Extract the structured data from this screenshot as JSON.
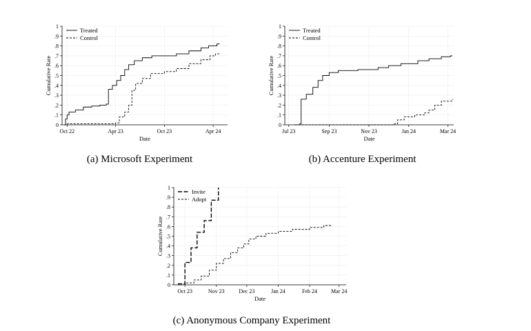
{
  "captions": {
    "a": "(a) Microsoft Experiment",
    "b": "(b) Accenture Experiment",
    "c": "(c) Anonymous Company Experiment"
  },
  "chart_data": [
    {
      "type": "line",
      "xlabel": "Date",
      "ylabel": "Cumulative Rate",
      "x_type": "date",
      "xlim": [
        "2022-09-12",
        "2024-05-25"
      ],
      "ylim": [
        0,
        1
      ],
      "yticks": [
        0,
        0.1,
        0.2,
        0.3,
        0.4,
        0.5,
        0.6,
        0.7,
        0.8,
        0.9,
        1
      ],
      "ytick_labels": [
        "0",
        ".1",
        ".2",
        ".3",
        ".4",
        ".5",
        ".6",
        ".7",
        ".8",
        ".9",
        "1"
      ],
      "xticks": [
        "2022-10-01",
        "2023-04-01",
        "2023-10-01",
        "2024-04-01"
      ],
      "xtick_labels": [
        "Oct 22",
        "Apr 23",
        "Oct 23",
        "Apr 24"
      ],
      "grid": true,
      "legend": "top-left",
      "series": [
        {
          "name": "Treated",
          "style": "solid",
          "step": true,
          "points": [
            [
              "2022-09-20",
              0.0
            ],
            [
              "2022-09-25",
              0.06
            ],
            [
              "2022-10-01",
              0.1
            ],
            [
              "2022-10-08",
              0.13
            ],
            [
              "2022-11-01",
              0.15
            ],
            [
              "2022-12-01",
              0.18
            ],
            [
              "2023-01-01",
              0.19
            ],
            [
              "2023-02-01",
              0.2
            ],
            [
              "2023-02-25",
              0.21
            ],
            [
              "2023-03-05",
              0.36
            ],
            [
              "2023-03-20",
              0.4
            ],
            [
              "2023-04-05",
              0.45
            ],
            [
              "2023-04-20",
              0.5
            ],
            [
              "2023-05-05",
              0.56
            ],
            [
              "2023-05-20",
              0.61
            ],
            [
              "2023-06-10",
              0.65
            ],
            [
              "2023-07-10",
              0.68
            ],
            [
              "2023-08-15",
              0.7
            ],
            [
              "2023-10-01",
              0.7
            ],
            [
              "2023-11-15",
              0.72
            ],
            [
              "2024-01-01",
              0.75
            ],
            [
              "2024-02-15",
              0.78
            ],
            [
              "2024-03-15",
              0.8
            ],
            [
              "2024-04-15",
              0.82
            ],
            [
              "2024-04-25",
              0.82
            ]
          ]
        },
        {
          "name": "Control",
          "style": "dashed",
          "step": true,
          "points": [
            [
              "2022-09-20",
              0.0
            ],
            [
              "2022-10-01",
              0.01
            ],
            [
              "2023-01-01",
              0.01
            ],
            [
              "2023-04-01",
              0.02
            ],
            [
              "2023-04-15",
              0.08
            ],
            [
              "2023-05-05",
              0.13
            ],
            [
              "2023-05-20",
              0.2
            ],
            [
              "2023-06-01",
              0.35
            ],
            [
              "2023-06-15",
              0.42
            ],
            [
              "2023-07-10",
              0.47
            ],
            [
              "2023-08-10",
              0.52
            ],
            [
              "2023-10-01",
              0.54
            ],
            [
              "2023-11-15",
              0.57
            ],
            [
              "2024-01-01",
              0.62
            ],
            [
              "2024-02-15",
              0.66
            ],
            [
              "2024-03-20",
              0.7
            ],
            [
              "2024-04-10",
              0.72
            ],
            [
              "2024-04-25",
              0.72
            ]
          ]
        }
      ]
    },
    {
      "type": "line",
      "xlabel": "Date",
      "ylabel": "Cumulative Rate",
      "x_type": "date",
      "xlim": [
        "2023-06-25",
        "2024-03-10"
      ],
      "ylim": [
        0,
        1
      ],
      "yticks": [
        0,
        0.1,
        0.2,
        0.3,
        0.4,
        0.5,
        0.6,
        0.7,
        0.8,
        0.9,
        1
      ],
      "ytick_labels": [
        "0",
        ".1",
        ".2",
        ".3",
        ".4",
        ".5",
        ".6",
        ".7",
        ".8",
        ".9",
        "1"
      ],
      "xticks": [
        "2023-07-01",
        "2023-09-01",
        "2023-11-01",
        "2024-01-01",
        "2024-03-01"
      ],
      "xtick_labels": [
        "Jul 23",
        "Sep 23",
        "Nov 23",
        "Jan 24",
        "Mar 24"
      ],
      "grid": true,
      "legend": "top-left",
      "series": [
        {
          "name": "Treated",
          "style": "solid",
          "step": true,
          "points": [
            [
              "2023-07-10",
              0.0
            ],
            [
              "2023-07-18",
              0.01
            ],
            [
              "2023-07-20",
              0.26
            ],
            [
              "2023-07-28",
              0.31
            ],
            [
              "2023-08-07",
              0.38
            ],
            [
              "2023-08-15",
              0.45
            ],
            [
              "2023-08-22",
              0.5
            ],
            [
              "2023-09-01",
              0.53
            ],
            [
              "2023-09-15",
              0.55
            ],
            [
              "2023-10-15",
              0.56
            ],
            [
              "2023-11-15",
              0.58
            ],
            [
              "2023-12-01",
              0.6
            ],
            [
              "2023-12-20",
              0.62
            ],
            [
              "2024-01-15",
              0.65
            ],
            [
              "2024-02-01",
              0.67
            ],
            [
              "2024-02-20",
              0.69
            ],
            [
              "2024-03-05",
              0.7
            ],
            [
              "2024-03-08",
              0.7
            ]
          ]
        },
        {
          "name": "Control",
          "style": "dashed",
          "step": true,
          "points": [
            [
              "2023-07-10",
              0.0
            ],
            [
              "2023-12-10",
              0.01
            ],
            [
              "2023-12-15",
              0.05
            ],
            [
              "2023-12-25",
              0.08
            ],
            [
              "2024-01-10",
              0.1
            ],
            [
              "2024-01-25",
              0.12
            ],
            [
              "2024-02-01",
              0.15
            ],
            [
              "2024-02-10",
              0.2
            ],
            [
              "2024-02-20",
              0.24
            ],
            [
              "2024-03-08",
              0.26
            ]
          ]
        }
      ]
    },
    {
      "type": "line",
      "xlabel": "Date",
      "ylabel": "Cumulative Rate",
      "x_type": "date",
      "xlim": [
        "2023-09-20",
        "2024-03-08"
      ],
      "ylim": [
        0,
        1
      ],
      "yticks": [
        0,
        0.1,
        0.2,
        0.3,
        0.4,
        0.5,
        0.6,
        0.7,
        0.8,
        0.9,
        1
      ],
      "ytick_labels": [
        "0",
        ".1",
        ".2",
        ".3",
        ".4",
        ".5",
        ".6",
        ".7",
        ".8",
        ".9",
        "1"
      ],
      "xticks": [
        "2023-10-01",
        "2023-11-01",
        "2023-12-01",
        "2024-01-01",
        "2024-02-01",
        "2024-03-01"
      ],
      "xtick_labels": [
        "Oct 23",
        "Nov 23",
        "Dec 23",
        "Jan 24",
        "Feb 24",
        "Mar 24"
      ],
      "grid": true,
      "legend": "top-left",
      "series": [
        {
          "name": "Invite",
          "style": "longdash",
          "step": true,
          "points": [
            [
              "2023-09-24",
              0.01
            ],
            [
              "2023-10-01",
              0.23
            ],
            [
              "2023-10-07",
              0.38
            ],
            [
              "2023-10-13",
              0.54
            ],
            [
              "2023-10-20",
              0.66
            ],
            [
              "2023-10-27",
              0.87
            ],
            [
              "2023-11-03",
              1.0
            ]
          ]
        },
        {
          "name": "Adopt",
          "style": "dashed",
          "step": true,
          "points": [
            [
              "2023-09-24",
              0.0
            ],
            [
              "2023-10-01",
              0.02
            ],
            [
              "2023-10-10",
              0.05
            ],
            [
              "2023-10-17",
              0.09
            ],
            [
              "2023-10-25",
              0.15
            ],
            [
              "2023-11-01",
              0.22
            ],
            [
              "2023-11-08",
              0.27
            ],
            [
              "2023-11-15",
              0.33
            ],
            [
              "2023-11-22",
              0.38
            ],
            [
              "2023-11-28",
              0.42
            ],
            [
              "2023-12-03",
              0.47
            ],
            [
              "2023-12-10",
              0.5
            ],
            [
              "2023-12-20",
              0.53
            ],
            [
              "2024-01-01",
              0.55
            ],
            [
              "2024-01-15",
              0.57
            ],
            [
              "2024-02-01",
              0.59
            ],
            [
              "2024-02-15",
              0.61
            ],
            [
              "2024-02-22",
              0.62
            ]
          ]
        }
      ]
    }
  ]
}
